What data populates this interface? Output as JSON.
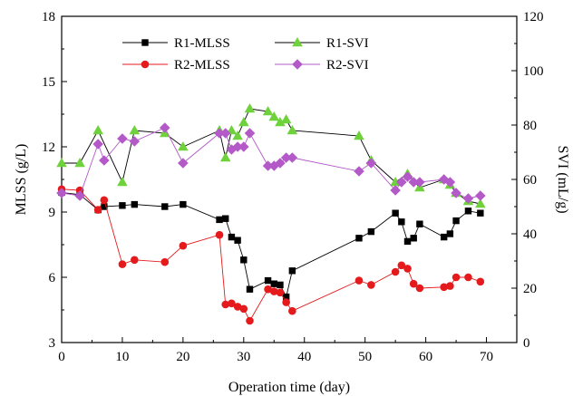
{
  "chart_data": {
    "type": "line",
    "xlabel": "Operation time (day)",
    "ylabel_left": "MLSS (g/L)",
    "ylabel_right": "SVI (mL/g)",
    "xlim": [
      0,
      75
    ],
    "ylim_left": [
      3,
      18
    ],
    "ylim_right": [
      0,
      120
    ],
    "x_ticks": [
      "0",
      "10",
      "20",
      "30",
      "40",
      "50",
      "60",
      "70"
    ],
    "y_left_ticks": [
      "3",
      "6",
      "9",
      "12",
      "15",
      "18"
    ],
    "y_right_ticks": [
      "0",
      "20",
      "40",
      "60",
      "80",
      "100",
      "120"
    ],
    "grid": false,
    "legend_position": "top",
    "series": [
      {
        "name": "R1-MLSS",
        "axis": "left",
        "marker": "square",
        "color": "#000000",
        "points": [
          [
            0,
            9.9
          ],
          [
            3,
            9.8
          ],
          [
            6,
            9.1
          ],
          [
            7,
            9.25
          ],
          [
            10,
            9.3
          ],
          [
            12,
            9.35
          ],
          [
            17,
            9.25
          ],
          [
            20,
            9.35
          ],
          [
            26,
            8.65
          ],
          [
            27,
            8.7
          ],
          [
            28,
            7.85
          ],
          [
            29,
            7.7
          ],
          [
            30,
            6.8
          ],
          [
            31,
            5.45
          ],
          [
            34,
            5.85
          ],
          [
            35,
            5.7
          ],
          [
            36,
            5.65
          ],
          [
            37,
            5.1
          ],
          [
            38,
            6.3
          ],
          [
            49,
            7.8
          ],
          [
            51,
            8.1
          ],
          [
            55,
            8.95
          ],
          [
            56,
            8.55
          ],
          [
            57,
            7.65
          ],
          [
            58,
            7.8
          ],
          [
            59,
            8.45
          ],
          [
            63,
            7.85
          ],
          [
            64,
            8.0
          ],
          [
            65,
            8.6
          ],
          [
            67,
            9.05
          ],
          [
            69,
            8.95
          ]
        ]
      },
      {
        "name": "R2-MLSS",
        "axis": "left",
        "marker": "circle",
        "color": "#e41a1c",
        "points": [
          [
            0,
            10.05
          ],
          [
            3,
            10.0
          ],
          [
            6,
            9.1
          ],
          [
            7,
            9.55
          ],
          [
            10,
            6.6
          ],
          [
            12,
            6.8
          ],
          [
            17,
            6.7
          ],
          [
            20,
            7.45
          ],
          [
            26,
            7.95
          ],
          [
            27,
            4.75
          ],
          [
            28,
            4.8
          ],
          [
            29,
            4.65
          ],
          [
            30,
            4.55
          ],
          [
            31,
            4.0
          ],
          [
            34,
            5.45
          ],
          [
            35,
            5.35
          ],
          [
            36,
            5.3
          ],
          [
            37,
            4.85
          ],
          [
            38,
            4.45
          ],
          [
            49,
            5.85
          ],
          [
            51,
            5.65
          ],
          [
            55,
            6.25
          ],
          [
            56,
            6.55
          ],
          [
            57,
            6.4
          ],
          [
            58,
            5.7
          ],
          [
            59,
            5.5
          ],
          [
            63,
            5.55
          ],
          [
            64,
            5.6
          ],
          [
            65,
            6.0
          ],
          [
            67,
            6.0
          ],
          [
            69,
            5.8
          ]
        ]
      },
      {
        "name": "R1-SVI",
        "axis": "right",
        "marker": "triangle",
        "color": "#6fd23c",
        "points": [
          [
            0,
            66
          ],
          [
            3,
            66
          ],
          [
            6,
            78
          ],
          [
            10,
            59
          ],
          [
            12,
            78
          ],
          [
            17,
            77
          ],
          [
            20,
            72
          ],
          [
            26,
            78
          ],
          [
            27,
            68
          ],
          [
            28,
            78
          ],
          [
            29,
            76
          ],
          [
            30,
            81
          ],
          [
            31,
            86
          ],
          [
            34,
            85
          ],
          [
            35,
            83
          ],
          [
            36,
            81
          ],
          [
            37,
            82
          ],
          [
            38,
            78
          ],
          [
            49,
            76
          ],
          [
            51,
            67
          ],
          [
            55,
            59
          ],
          [
            57,
            62
          ],
          [
            59,
            57
          ],
          [
            63,
            60
          ],
          [
            64,
            58
          ],
          [
            65,
            55
          ],
          [
            67,
            52
          ],
          [
            69,
            51
          ]
        ]
      },
      {
        "name": "R2-SVI",
        "axis": "right",
        "marker": "diamond",
        "color": "#b35ac8",
        "points": [
          [
            0,
            55
          ],
          [
            3,
            54
          ],
          [
            6,
            73
          ],
          [
            7,
            67
          ],
          [
            10,
            75
          ],
          [
            12,
            74
          ],
          [
            17,
            79
          ],
          [
            20,
            66
          ],
          [
            26,
            77
          ],
          [
            27,
            77
          ],
          [
            28,
            71
          ],
          [
            29,
            72
          ],
          [
            30,
            72
          ],
          [
            31,
            77
          ],
          [
            34,
            65
          ],
          [
            35,
            65
          ],
          [
            36,
            66
          ],
          [
            37,
            68
          ],
          [
            38,
            68
          ],
          [
            49,
            63
          ],
          [
            51,
            66
          ],
          [
            55,
            56
          ],
          [
            56,
            59
          ],
          [
            57,
            61
          ],
          [
            58,
            59
          ],
          [
            59,
            59
          ],
          [
            63,
            60
          ],
          [
            64,
            59
          ],
          [
            65,
            55
          ],
          [
            67,
            53
          ],
          [
            69,
            54
          ]
        ]
      }
    ]
  }
}
